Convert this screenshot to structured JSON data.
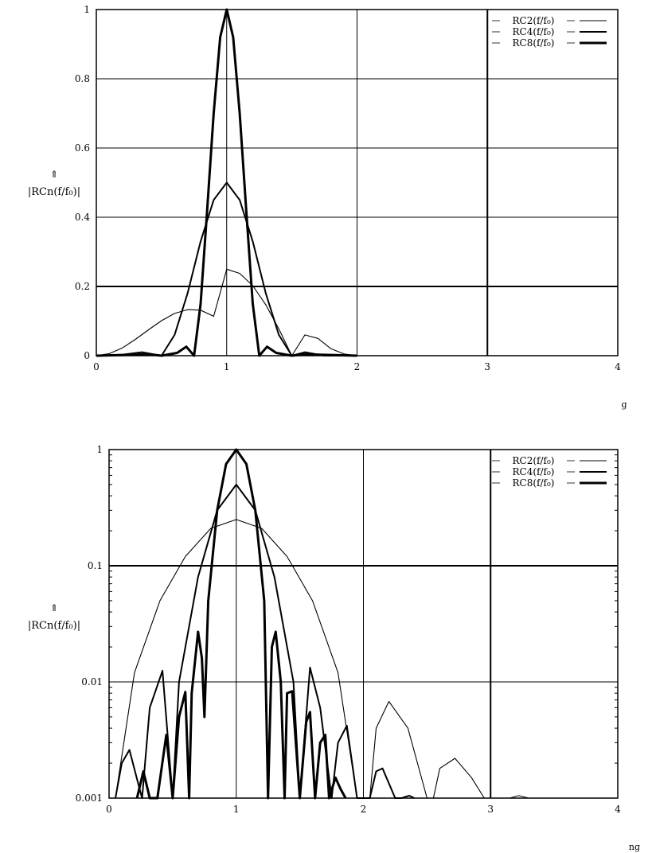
{
  "chart_data": [
    {
      "type": "line",
      "title": "",
      "xlabel": "g",
      "ylabel": "|RCn(f/f₀)|",
      "ylabel_arrow": "⇑",
      "xlim": [
        0,
        4
      ],
      "ylim": [
        0,
        1
      ],
      "yscale": "linear",
      "xticks": [
        0,
        1,
        2,
        3,
        4
      ],
      "xtick_labels": [
        "0",
        "1",
        "2",
        "3",
        "4"
      ],
      "yticks": [
        0,
        0.2,
        0.4,
        0.6,
        0.8,
        1
      ],
      "ytick_labels": [
        "0",
        "0.2",
        "0.4",
        "0.6",
        "0.8",
        "1"
      ],
      "grid": true,
      "legend_position": "top-right",
      "series": [
        {
          "name": "RC2(f/f₀)",
          "values": [
            [
              0,
              0
            ],
            [
              0.1,
              0.0059
            ],
            [
              0.2,
              0.0226
            ],
            [
              0.3,
              0.0471
            ],
            [
              0.4,
              0.0748
            ],
            [
              0.5,
              0.1012
            ],
            [
              0.6,
              0.1221
            ],
            [
              0.7,
              0.1332
            ],
            [
              0.8,
              0.1316
            ],
            [
              0.9,
              0.1138
            ],
            [
              1.0,
              0.25
            ],
            [
              1.1,
              0.2378
            ],
            [
              1.2,
              0.2022
            ],
            [
              1.3,
              0.1469
            ],
            [
              1.4,
              0.0773
            ],
            [
              1.5,
              0.0
            ],
            [
              1.6,
              0.06
            ],
            [
              1.7,
              0.05
            ],
            [
              1.8,
              0.02
            ],
            [
              1.9,
              0.005
            ],
            [
              2.0,
              0
            ]
          ]
        },
        {
          "name": "RC4(f/f₀)",
          "values": [
            [
              0,
              0
            ],
            [
              0.2,
              0.003
            ],
            [
              0.35,
              0.01
            ],
            [
              0.5,
              0
            ],
            [
              0.6,
              0.06
            ],
            [
              0.7,
              0.18
            ],
            [
              0.8,
              0.33
            ],
            [
              0.9,
              0.45
            ],
            [
              1.0,
              0.5
            ],
            [
              1.1,
              0.45
            ],
            [
              1.2,
              0.33
            ],
            [
              1.3,
              0.18
            ],
            [
              1.4,
              0.06
            ],
            [
              1.5,
              0
            ],
            [
              1.6,
              0.01
            ],
            [
              1.75,
              0
            ],
            [
              2.0,
              0
            ]
          ]
        },
        {
          "name": "RC8(f/f₀)",
          "values": [
            [
              0,
              0
            ],
            [
              0.4,
              0.004
            ],
            [
              0.5,
              0
            ],
            [
              0.62,
              0.008
            ],
            [
              0.69,
              0.026
            ],
            [
              0.75,
              0
            ],
            [
              0.8,
              0.15
            ],
            [
              0.85,
              0.42
            ],
            [
              0.9,
              0.7
            ],
            [
              0.95,
              0.92
            ],
            [
              1.0,
              1.0
            ],
            [
              1.05,
              0.92
            ],
            [
              1.1,
              0.7
            ],
            [
              1.15,
              0.42
            ],
            [
              1.2,
              0.15
            ],
            [
              1.25,
              0
            ],
            [
              1.31,
              0.026
            ],
            [
              1.38,
              0.008
            ],
            [
              1.5,
              0
            ],
            [
              1.6,
              0.004
            ],
            [
              2.0,
              0
            ]
          ]
        }
      ]
    },
    {
      "type": "line",
      "title": "",
      "xlabel": "ng",
      "ylabel": "|RCn(f/f₀)|",
      "ylabel_arrow": "⇑",
      "xlim": [
        0,
        4
      ],
      "ylim": [
        0.001,
        1
      ],
      "yscale": "log",
      "xticks": [
        0,
        1,
        2,
        3,
        4
      ],
      "xtick_labels": [
        "0",
        "1",
        "2",
        "3",
        "4"
      ],
      "yticks": [
        0.001,
        0.01,
        0.1,
        1
      ],
      "ytick_labels": [
        "0.001",
        "0.01",
        "0.1",
        "1"
      ],
      "grid": true,
      "legend_position": "top-right",
      "series": [
        {
          "name": "RC2(f/f₀)",
          "values": [
            [
              0.05,
              0.001
            ],
            [
              0.2,
              0.012
            ],
            [
              0.4,
              0.05
            ],
            [
              0.6,
              0.12
            ],
            [
              0.8,
              0.21
            ],
            [
              1.0,
              0.25
            ],
            [
              1.2,
              0.21
            ],
            [
              1.4,
              0.12
            ],
            [
              1.6,
              0.05
            ],
            [
              1.8,
              0.012
            ],
            [
              1.95,
              0.001
            ],
            [
              2.05,
              0.001
            ],
            [
              2.1,
              0.004
            ],
            [
              2.2,
              0.0068
            ],
            [
              2.35,
              0.004
            ],
            [
              2.5,
              0.001
            ],
            [
              2.55,
              0.001
            ],
            [
              2.6,
              0.0018
            ],
            [
              2.72,
              0.0022
            ],
            [
              2.85,
              0.0015
            ],
            [
              2.95,
              0.001
            ],
            [
              3.15,
              0.001
            ],
            [
              3.22,
              0.00105
            ],
            [
              3.3,
              0.001
            ]
          ]
        },
        {
          "name": "RC4(f/f₀)",
          "values": [
            [
              0.05,
              0.001
            ],
            [
              0.1,
              0.002
            ],
            [
              0.16,
              0.0026
            ],
            [
              0.24,
              0.0012
            ],
            [
              0.26,
              0.001
            ],
            [
              0.32,
              0.006
            ],
            [
              0.42,
              0.0125
            ],
            [
              0.5,
              0.001
            ],
            [
              0.55,
              0.01
            ],
            [
              0.7,
              0.08
            ],
            [
              0.85,
              0.3
            ],
            [
              1.0,
              0.5
            ],
            [
              1.15,
              0.3
            ],
            [
              1.3,
              0.08
            ],
            [
              1.45,
              0.01
            ],
            [
              1.5,
              0.001
            ],
            [
              1.58,
              0.0133
            ],
            [
              1.66,
              0.006
            ],
            [
              1.75,
              0.001
            ],
            [
              1.8,
              0.003
            ],
            [
              1.87,
              0.0042
            ],
            [
              1.95,
              0.001
            ],
            [
              2.05,
              0.001
            ],
            [
              2.1,
              0.0017
            ],
            [
              2.15,
              0.0018
            ],
            [
              2.25,
              0.001
            ],
            [
              2.3,
              0.001
            ],
            [
              2.36,
              0.00105
            ],
            [
              2.4,
              0.001
            ]
          ]
        },
        {
          "name": "RC8(f/f₀)",
          "values": [
            [
              0.22,
              0.001
            ],
            [
              0.27,
              0.0017
            ],
            [
              0.32,
              0.001
            ],
            [
              0.38,
              0.001
            ],
            [
              0.45,
              0.0035
            ],
            [
              0.5,
              0.001
            ],
            [
              0.55,
              0.005
            ],
            [
              0.6,
              0.0082
            ],
            [
              0.63,
              0.001
            ],
            [
              0.65,
              0.008
            ],
            [
              0.7,
              0.027
            ],
            [
              0.73,
              0.016
            ],
            [
              0.75,
              0.005
            ],
            [
              0.78,
              0.05
            ],
            [
              0.85,
              0.3
            ],
            [
              0.92,
              0.75
            ],
            [
              1.0,
              1.0
            ],
            [
              1.08,
              0.75
            ],
            [
              1.15,
              0.3
            ],
            [
              1.22,
              0.05
            ],
            [
              1.25,
              0.001
            ],
            [
              1.28,
              0.02
            ],
            [
              1.31,
              0.027
            ],
            [
              1.35,
              0.01
            ],
            [
              1.38,
              0.001
            ],
            [
              1.4,
              0.008
            ],
            [
              1.44,
              0.0083
            ],
            [
              1.5,
              0.001
            ],
            [
              1.55,
              0.0045
            ],
            [
              1.58,
              0.0055
            ],
            [
              1.62,
              0.001
            ],
            [
              1.66,
              0.003
            ],
            [
              1.7,
              0.0035
            ],
            [
              1.73,
              0.001
            ],
            [
              1.78,
              0.0015
            ],
            [
              1.82,
              0.0012
            ],
            [
              1.86,
              0.001
            ]
          ]
        }
      ]
    }
  ]
}
